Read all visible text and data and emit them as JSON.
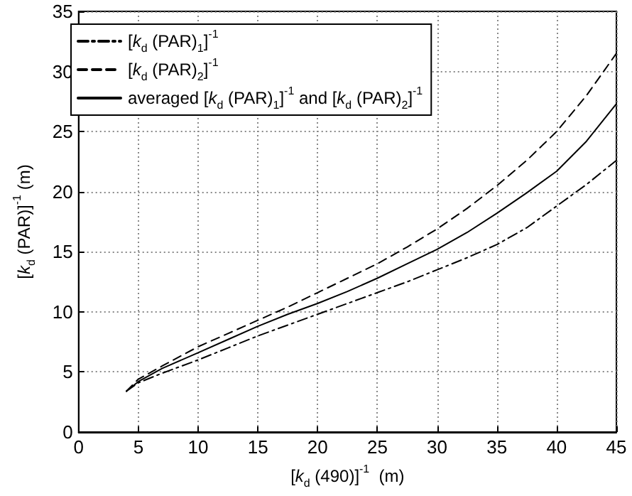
{
  "chart_data": {
    "type": "line",
    "xlabel": "[k$_{d}$ (490)]$^{-1}$  (m)",
    "ylabel": "[k$_{d}$ (PAR)]$^{-1}$ (m)",
    "x": [
      4,
      5,
      7,
      10,
      12.5,
      15,
      17.5,
      20,
      22.5,
      25,
      27.5,
      30,
      32.5,
      35,
      37.5,
      40,
      42.5,
      45
    ],
    "series": [
      {
        "name": "[k$_{d}$ (PAR)$_{1}$]$^{-1}$",
        "color": "#000000",
        "line_style": "dashdot",
        "values": [
          3.4,
          4.1,
          4.9,
          6.0,
          7.0,
          8.0,
          8.9,
          9.8,
          10.7,
          11.6,
          12.5,
          13.5,
          14.5,
          15.6,
          17.0,
          18.8,
          20.6,
          22.6
        ]
      },
      {
        "name": "[k$_{d}$ (PAR)$_{2}$]$^{-1}$",
        "color": "#000000",
        "line_style": "dashed",
        "values": [
          3.4,
          4.4,
          5.5,
          7.1,
          8.2,
          9.3,
          10.4,
          11.6,
          12.8,
          14.0,
          15.4,
          16.9,
          18.6,
          20.5,
          22.6,
          25.0,
          28.0,
          31.5
        ]
      },
      {
        "name": "averaged [k$_{d}$ (PAR)$_{1}$]$^{-1}$ and [k$_{d}$ (PAR)$_{2}$]$^{-1}$",
        "color": "#000000",
        "line_style": "solid",
        "values": [
          3.4,
          4.2,
          5.3,
          6.6,
          7.7,
          8.8,
          9.8,
          10.7,
          11.7,
          12.8,
          14.0,
          15.2,
          16.6,
          18.2,
          19.9,
          21.7,
          24.2,
          27.3
        ]
      }
    ],
    "xlim": [
      0,
      45
    ],
    "xticks": [
      0,
      5,
      10,
      15,
      20,
      25,
      30,
      35,
      40,
      45
    ],
    "ylim": [
      0,
      35
    ],
    "yticks": [
      0,
      5,
      10,
      15,
      20,
      25,
      30,
      35
    ],
    "grid": true,
    "legend": "top left",
    "marker": "none"
  }
}
